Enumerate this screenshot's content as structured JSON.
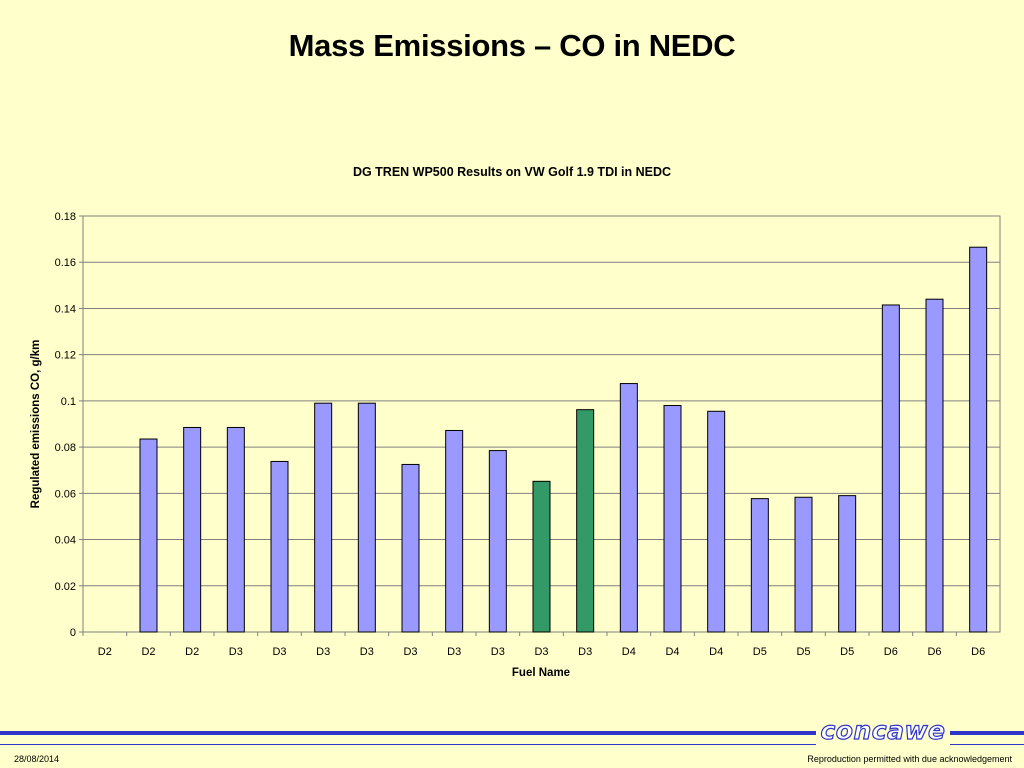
{
  "slide": {
    "title": "Mass Emissions – CO in NEDC",
    "date": "28/08/2014",
    "footer_note": "Reproduction permitted with due acknowledgement",
    "logo_text": "concawe"
  },
  "colors": {
    "background": "#FFFFCC",
    "bar_default": "#9999FF",
    "bar_highlight": "#339966",
    "footer_line": "#2E35C8"
  },
  "chart_data": {
    "type": "bar",
    "title": "DG TREN WP500 Results on VW Golf 1.9 TDI in NEDC",
    "xlabel": "Fuel Name",
    "ylabel": "Regulated emissions CO, g/km",
    "ylim": [
      0,
      0.18
    ],
    "yticks": [
      "0",
      "0.02",
      "0.04",
      "0.06",
      "0.08",
      "0.1",
      "0.12",
      "0.14",
      "0.16",
      "0.18"
    ],
    "grid": true,
    "categories": [
      "D2",
      "D2",
      "D2",
      "D3",
      "D3",
      "D3",
      "D3",
      "D3",
      "D3",
      "D3",
      "D3",
      "D3",
      "D4",
      "D4",
      "D4",
      "D5",
      "D5",
      "D5",
      "D6",
      "D6",
      "D6"
    ],
    "values": [
      null,
      0.0835,
      0.0885,
      0.0885,
      0.0738,
      0.099,
      0.099,
      0.0725,
      0.0872,
      0.0785,
      0.0652,
      0.0962,
      0.1075,
      0.098,
      0.0955,
      0.0577,
      0.0583,
      0.059,
      0.1415,
      0.144,
      0.1665
    ],
    "highlighted": [
      10,
      11
    ]
  }
}
